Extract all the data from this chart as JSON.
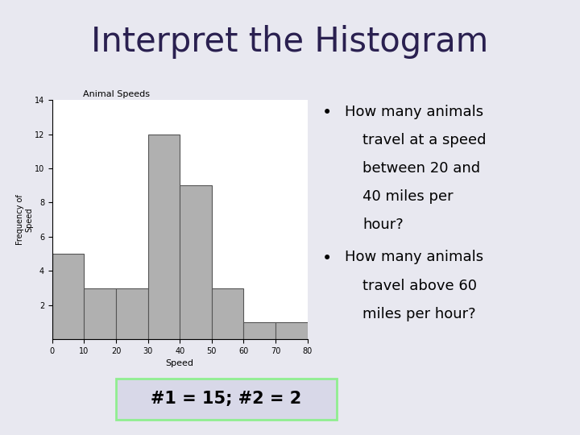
{
  "title": "Interpret the Histogram",
  "title_bg_color": "#b0a0d8",
  "slide_bg_color": "#e8e8f0",
  "histogram_title": "Animal Speeds",
  "xlabel": "Speed",
  "ylabel": "Frequency of\nSpeed",
  "bar_edges": [
    0,
    10,
    20,
    30,
    40,
    50,
    60,
    70,
    80
  ],
  "bar_heights": [
    5,
    3,
    3,
    12,
    9,
    3,
    1,
    1
  ],
  "bar_color": "#b0b0b0",
  "bar_edgecolor": "#555555",
  "ylim": [
    0,
    14
  ],
  "yticks": [
    2,
    4,
    6,
    8,
    10,
    12,
    14
  ],
  "xticks": [
    0,
    10,
    20,
    30,
    40,
    50,
    60,
    70,
    80
  ],
  "bullet1_lines": [
    "How many animals",
    "travel at a speed",
    "between 20 and",
    "40 miles per",
    "hour?"
  ],
  "bullet2_lines": [
    "How many animals",
    "travel above 60",
    "miles per hour?"
  ],
  "answer_text": "#1 = 15; #2 = 2",
  "answer_box_color": "#90ee90",
  "answer_bg_color": "#d8d8e8",
  "title_text_color": "#2a2050",
  "bullet_text_color": "#000000"
}
